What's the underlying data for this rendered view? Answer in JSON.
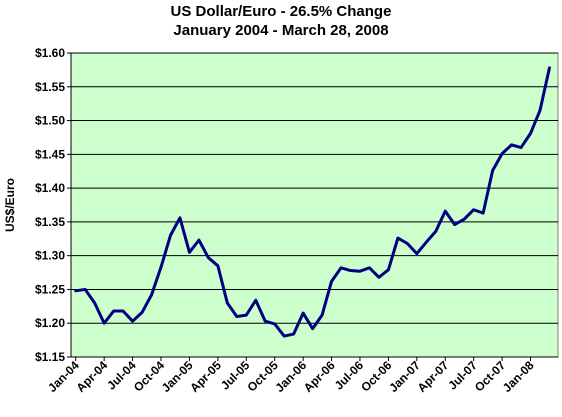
{
  "chart_data": {
    "type": "line",
    "title": "US Dollar/Euro - 26.5% Change",
    "subtitle": "January 2004 - March 28, 2008",
    "xlabel": "",
    "ylabel": "US$/Euro",
    "ylim": [
      1.15,
      1.6
    ],
    "yticks": [
      "$1.15",
      "$1.20",
      "$1.25",
      "$1.30",
      "$1.35",
      "$1.40",
      "$1.45",
      "$1.50",
      "$1.55",
      "$1.60"
    ],
    "xticks": [
      "Jan-04",
      "Apr-04",
      "Jul-04",
      "Oct-04",
      "Jan-05",
      "Apr-05",
      "Jul-05",
      "Oct-05",
      "Jan-06",
      "Apr-06",
      "Jul-06",
      "Oct-06",
      "Jan-07",
      "Apr-07",
      "Jul-07",
      "Oct-07",
      "Jan-08"
    ],
    "grid": true,
    "legend": "none",
    "colors": {
      "plot_background": "#ccffcc",
      "line": "#000080",
      "grid": "#000000"
    },
    "series": [
      {
        "values": [
          1.248,
          1.25,
          1.23,
          1.2,
          1.218,
          1.218,
          1.203,
          1.216,
          1.242,
          1.283,
          1.33,
          1.356,
          1.305,
          1.323,
          1.297,
          1.285,
          1.23,
          1.21,
          1.212,
          1.234,
          1.203,
          1.199,
          1.181,
          1.184,
          1.215,
          1.192,
          1.212,
          1.262,
          1.282,
          1.278,
          1.277,
          1.282,
          1.268,
          1.279,
          1.326,
          1.318,
          1.303,
          1.32,
          1.336,
          1.366,
          1.346,
          1.354,
          1.368,
          1.363,
          1.426,
          1.451,
          1.464,
          1.46,
          1.481,
          1.515,
          1.578
        ]
      }
    ]
  }
}
